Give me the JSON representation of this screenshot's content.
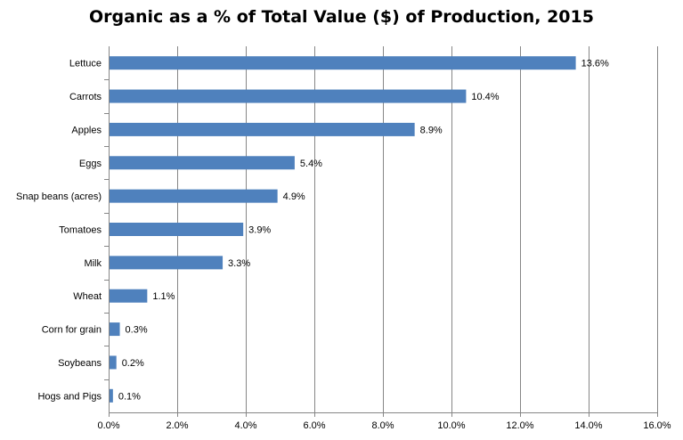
{
  "chart_data": {
    "type": "bar",
    "orientation": "horizontal",
    "title": "Organic as a % of Total Value ($) of Production, 2015",
    "xlabel": "",
    "ylabel": "",
    "categories": [
      "Lettuce",
      "Carrots",
      "Apples",
      "Eggs",
      "Snap beans (acres)",
      "Tomatoes",
      "Milk",
      "Wheat",
      "Corn for grain",
      "Soybeans",
      "Hogs and Pigs"
    ],
    "values": [
      13.6,
      10.4,
      8.9,
      5.4,
      4.9,
      3.9,
      3.3,
      1.1,
      0.3,
      0.2,
      0.1
    ],
    "data_labels": [
      "13.6%",
      "10.4%",
      "8.9%",
      "5.4%",
      "4.9%",
      "3.9%",
      "3.3%",
      "1.1%",
      "0.3%",
      "0.2%",
      "0.1%"
    ],
    "xlim": [
      0,
      16
    ],
    "x_ticks": [
      0,
      2,
      4,
      6,
      8,
      10,
      12,
      14,
      16
    ],
    "x_tick_labels": [
      "0.0%",
      "2.0%",
      "4.0%",
      "6.0%",
      "8.0%",
      "10.0%",
      "12.0%",
      "14.0%",
      "16.0%"
    ],
    "grid": "vertical",
    "legend": "none",
    "bar_color": "#4F81BD",
    "gridline_color": "#868686"
  }
}
